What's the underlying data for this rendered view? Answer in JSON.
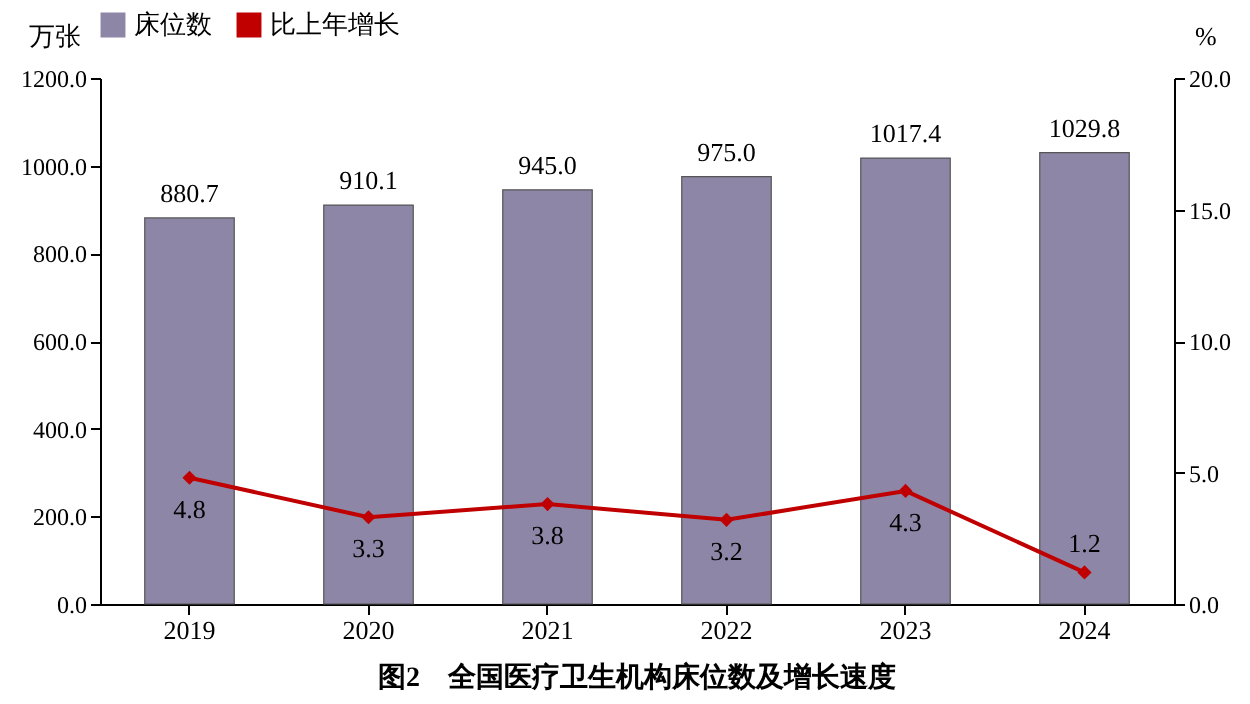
{
  "chart_data": {
    "type": "bar",
    "title": "图2　全国医疗卫生机构床位数及增长速度",
    "ylabel": "万张",
    "y2label": "%",
    "categories": [
      "2019",
      "2020",
      "2021",
      "2022",
      "2023",
      "2024"
    ],
    "series": [
      {
        "name": "床位数",
        "color": "#8e86a6",
        "values": [
          880.7,
          910.1,
          945.0,
          975.0,
          1017.4,
          1029.8
        ],
        "value_labels": [
          "880.7",
          "910.1",
          "945.0",
          "975.0",
          "1017.4",
          "1029.8"
        ]
      },
      {
        "name": "比上年增长",
        "type": "line",
        "axis": "y2",
        "color": "#c00000",
        "marker": "diamond",
        "values": [
          4.8,
          3.3,
          3.8,
          3.2,
          4.3,
          1.2
        ],
        "value_labels": [
          "4.8",
          "3.3",
          "3.8",
          "3.2",
          "4.3",
          "1.2"
        ]
      }
    ],
    "ylim": [
      0,
      1200
    ],
    "yticks": [
      {
        "value": 0,
        "label": "0.0"
      },
      {
        "value": 200,
        "label": "200.0"
      },
      {
        "value": 400,
        "label": "400.0"
      },
      {
        "value": 600,
        "label": "600.0"
      },
      {
        "value": 800,
        "label": "800.0"
      },
      {
        "value": 1000,
        "label": "1000.0"
      },
      {
        "value": 1200,
        "label": "1200.0"
      }
    ],
    "y2lim": [
      0,
      20
    ],
    "y2ticks": [
      {
        "value": 0,
        "label": "0.0"
      },
      {
        "value": 5,
        "label": "5.0"
      },
      {
        "value": 10,
        "label": "10.0"
      },
      {
        "value": 15,
        "label": "15.0"
      },
      {
        "value": 20,
        "label": "20.0"
      }
    ],
    "legend": "top",
    "grid": false
  }
}
